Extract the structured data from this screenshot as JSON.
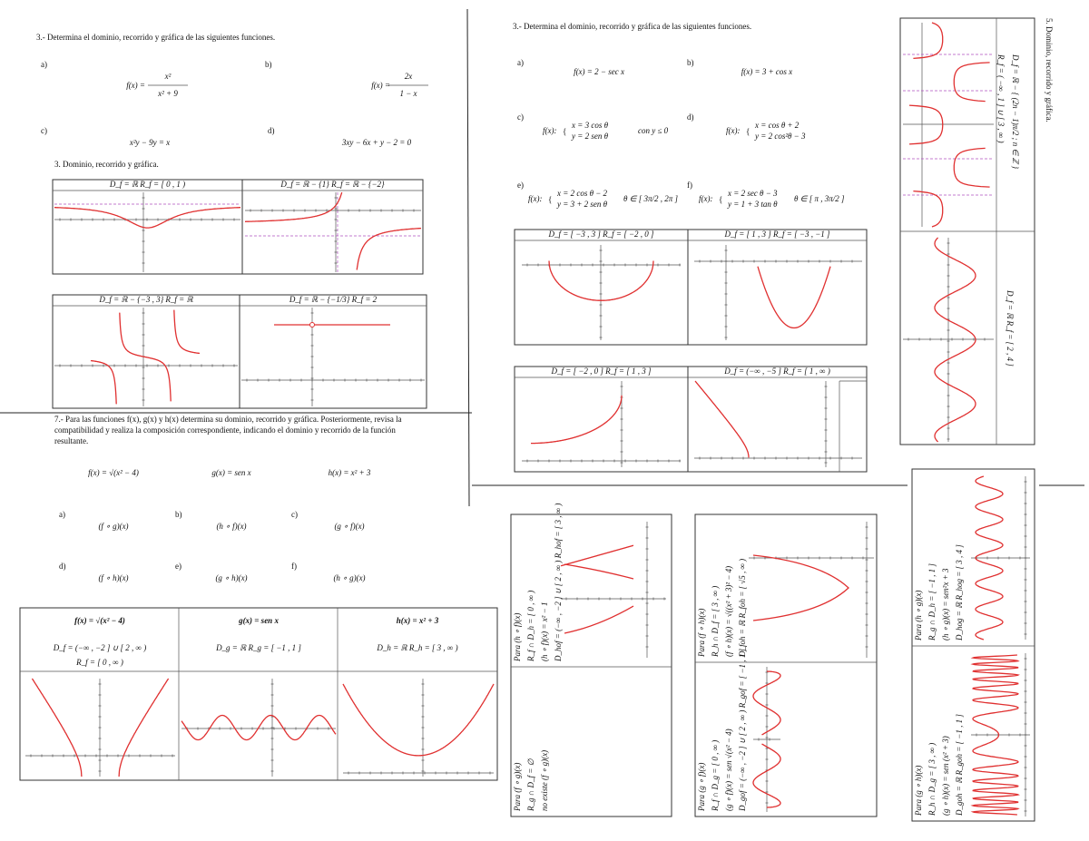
{
  "left": {
    "title": "3.- Determina el dominio, recorrido y gráfica de las siguientes funciones.",
    "items": [
      {
        "label": "a)",
        "lhs": "f(x) =",
        "num": "x²",
        "den": "x² + 9"
      },
      {
        "label": "b)",
        "lhs": "f(x) =",
        "num": "2x",
        "den": "1 − x"
      },
      {
        "label": "c)",
        "expr": "x²y − 9y = x"
      },
      {
        "label": "d)",
        "expr": "3xy − 6x + y − 2 = 0"
      }
    ],
    "subtitle": "3. Dominio, recorrido y gráfica.",
    "graphs": [
      "D_f = ℝ     R_f = [ 0 , 1 )",
      "D_f = ℝ − {1}     R_f = ℝ − {−2}",
      "D_f = ℝ − {−3 , 3}     R_f = ℝ",
      "D_f = ℝ − {−1/3}     R_f = 2"
    ]
  },
  "exercise7": {
    "text": [
      "7.- Para las funciones f(x), g(x) y h(x) determina su dominio, recorrido y gráfica. Posteriormente, revisa la",
      "compatibilidad y realiza la composición correspondiente, indicando el dominio y recorrido de la función",
      "resultante."
    ],
    "functions": [
      "f(x) = √(x² − 4)",
      "g(x) = sen x",
      "h(x) = x² + 3"
    ],
    "items": [
      {
        "label": "a)",
        "expr": "(f ∘ g)(x)"
      },
      {
        "label": "b)",
        "expr": "(h ∘ f)(x)"
      },
      {
        "label": "c)",
        "expr": "(g ∘ f)(x)"
      },
      {
        "label": "d)",
        "expr": "(f ∘ h)(x)"
      },
      {
        "label": "e)",
        "expr": "(g ∘ h)(x)"
      },
      {
        "label": "f)",
        "expr": "(h ∘ g)(x)"
      }
    ],
    "table": [
      {
        "head": "f(x) = √(x² − 4)",
        "domain": "D_f = (−∞ , −2 ] ∪ [ 2 , ∞ )",
        "range": "R_f = [ 0 , ∞ )"
      },
      {
        "head": "g(x) = sen x",
        "domain": "D_g = ℝ     R_g = [ −1 , 1 ]"
      },
      {
        "head": "h(x) = x² + 3",
        "domain": "D_h = ℝ     R_h = [ 3 , ∞ )"
      }
    ]
  },
  "middle": {
    "title": "3.- Determina el dominio, recorrido y gráfica de las siguientes funciones.",
    "items": [
      {
        "label": "a)",
        "expr": "f(x) = 2 − sec x"
      },
      {
        "label": "b)",
        "expr": "f(x) = 3 + cos x"
      },
      {
        "label": "c)",
        "lhs": "f(x):",
        "l1": "x = 3 cos θ",
        "l2": "y = 2 sen θ",
        "cond": "con  y ≤ 0"
      },
      {
        "label": "d)",
        "lhs": "f(x):",
        "l1": "x = cos θ + 2",
        "l2": "y = 2 cos²θ − 3"
      },
      {
        "label": "e)",
        "lhs": "f(x):",
        "l1": "x = 2 cos θ − 2",
        "l2": "y = 3 + 2 sen θ",
        "cond": "θ ∈ [ 3π/2 , 2π ]"
      },
      {
        "label": "f)",
        "lhs": "f(x):",
        "l1": "x = 2 sec θ − 3",
        "l2": "y = 1 + 3 tan θ",
        "cond": "θ ∈ [ π , 3π/2 ]"
      }
    ],
    "graphs": [
      "D_f = [ −3 , 3 ]     R_f = [ −2 , 0 ]",
      "D_f = [ 1 , 3 ]     R_f = [ −3 , −1 ]",
      "D_f = [ −2 , 0 ]     R_f = [ 1 , 3 ]",
      "D_f = (−∞ , −5 ]     R_f = [ 1 , ∞ )"
    ]
  },
  "right": {
    "title": "5. Dominio, recorrido y gráfica.",
    "top": [
      "D_f = ℝ − { (2n − 1)π/2 ; n ∈ ℤ }",
      "R_f = ( −∞ , 1 ] ∪ [ 3 , ∞ )"
    ],
    "bottom": "D_f = ℝ     R_f = [ 2 , 4 ]"
  },
  "compositions": [
    {
      "top": [
        "Para (h ∘ f)(x)",
        "R_f ∩ D_h = [ 0 , ∞ )",
        "(h ∘ f)(x) = x² − 1",
        "D_hof = (−∞ , −2 ] ∪ [ 2 , ∞ )   R_hof = [ 3 , ∞ )"
      ],
      "bottom": [
        "Para (f ∘ g)(x)",
        "R_g ∩ D_f = ∅",
        "no existe (f ∘ g)(x)"
      ]
    },
    {
      "top": [
        "Para (f ∘ h)(x)",
        "R_h ∩ D_f = [ 3 , ∞ )",
        "(f ∘ h)(x) = √((x² + 3)² − 4)",
        "D_foh = ℝ   R_foh = [ √5 , ∞ )"
      ],
      "bottom": [
        "Para (g ∘ f)(x)",
        "R_f ∩ D_g = [ 0 , ∞ )",
        "(g ∘ f)(x) = sen √(x² − 4)",
        "D_gof = (−∞ , −2 ] ∪ [ 2 , ∞ )   R_gof = [ −1 , 1 ]"
      ]
    },
    {
      "top": [
        "Para (h ∘ g)(x)",
        "R_g ∩ D_h = [ −1 , 1 ]",
        "(h ∘ g)(x) = sen²x + 3",
        "D_hog = ℝ   R_hog = [ 3 , 4 ]"
      ],
      "bottom": [
        "Para (g ∘ h)(x)",
        "R_h ∩ D_g = [ 3 , ∞ )",
        "(g ∘ h)(x) = sen (x² + 3)",
        "D_goh = ℝ   R_goh = [ −1 , 1 ]"
      ]
    }
  ]
}
